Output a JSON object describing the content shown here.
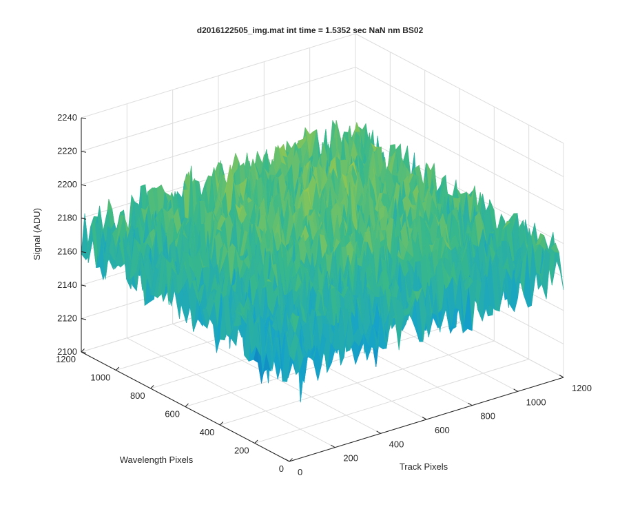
{
  "chart_data": {
    "type": "surface",
    "title": "d2016122505_img.mat int time = 1.5352 sec  NaN nm BS02",
    "xlabel": "Track Pixels",
    "ylabel": "Wavelength Pixels",
    "zlabel": "Signal (ADU)",
    "xlim": [
      0,
      1200
    ],
    "ylim": [
      0,
      1200
    ],
    "zlim": [
      2100,
      2240
    ],
    "xticks": [
      0,
      200,
      400,
      600,
      800,
      1000,
      1200
    ],
    "yticks": [
      0,
      200,
      400,
      600,
      800,
      1000,
      1200
    ],
    "zticks": [
      2100,
      2120,
      2140,
      2160,
      2180,
      2200,
      2220,
      2240
    ],
    "surface_range": [
      2100,
      2240
    ],
    "colormap": [
      "#0d76c0",
      "#16a3c9",
      "#39b88a",
      "#9bc84c",
      "#e4c235"
    ],
    "grid": true,
    "legend": "none"
  }
}
